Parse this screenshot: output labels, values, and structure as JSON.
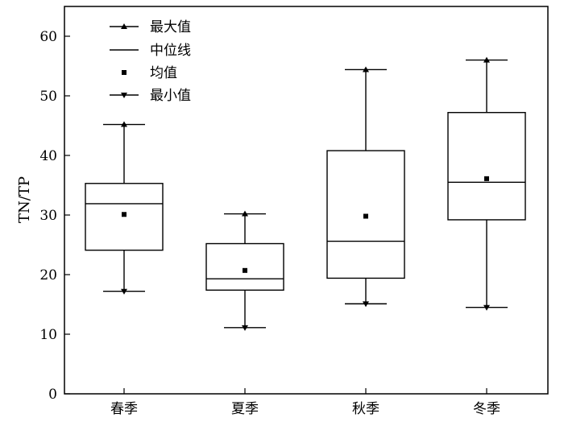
{
  "chart_data": {
    "type": "boxplot",
    "ylabel": "TN/TP",
    "xlabel": "",
    "ylim": [
      0,
      65
    ],
    "yticks": [
      0,
      10,
      20,
      30,
      40,
      50,
      60
    ],
    "categories": [
      "春季",
      "夏季",
      "秋季",
      "冬季"
    ],
    "boxes": [
      {
        "category": "春季",
        "max": 45.2,
        "q3": 35.3,
        "median": 31.9,
        "mean": 30.1,
        "q1": 24.1,
        "min": 17.2
      },
      {
        "category": "夏季",
        "max": 30.2,
        "q3": 25.2,
        "median": 19.3,
        "mean": 20.7,
        "q1": 17.4,
        "min": 11.1
      },
      {
        "category": "秋季",
        "max": 54.4,
        "q3": 40.8,
        "median": 25.6,
        "mean": 29.8,
        "q1": 19.4,
        "min": 15.1
      },
      {
        "category": "冬季",
        "max": 56.0,
        "q3": 47.2,
        "median": 35.5,
        "mean": 36.1,
        "q1": 29.2,
        "min": 14.5
      }
    ],
    "legend": {
      "placement": "top-left",
      "entries": [
        {
          "key": "max",
          "label": "最大值"
        },
        {
          "key": "median",
          "label": "中位线"
        },
        {
          "key": "mean",
          "label": "均值"
        },
        {
          "key": "min",
          "label": "最小值"
        }
      ]
    },
    "grid": false
  },
  "colors": {
    "ink": "#000000",
    "background": "#ffffff"
  }
}
